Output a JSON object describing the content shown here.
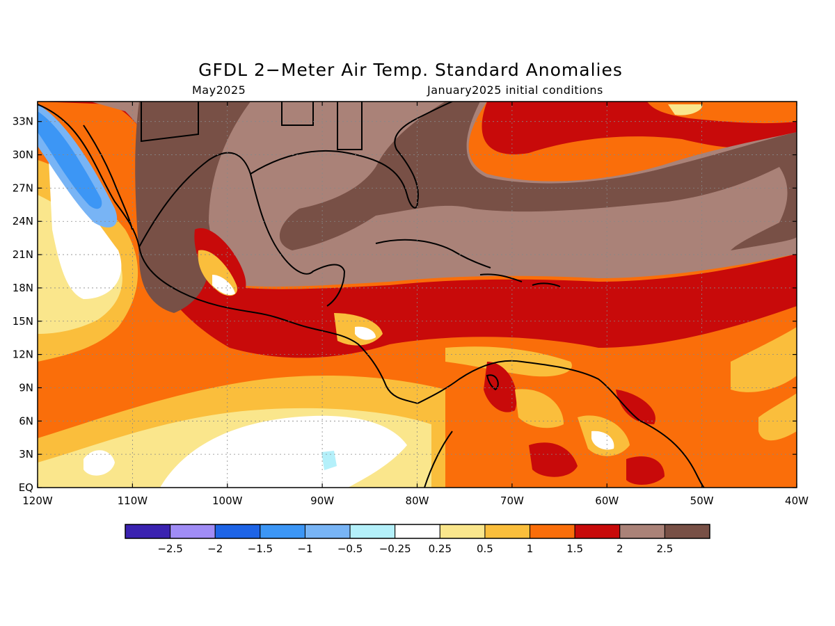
{
  "title": "GFDL 2−Meter Air Temp. Standard Anomalies",
  "subtitle_left": "May2025",
  "subtitle_right": "January2025 initial conditions",
  "lat_ticks": [
    "EQ",
    "3N",
    "6N",
    "9N",
    "12N",
    "15N",
    "18N",
    "21N",
    "24N",
    "27N",
    "30N",
    "33N"
  ],
  "lon_ticks": [
    "120W",
    "110W",
    "100W",
    "90W",
    "80W",
    "70W",
    "60W",
    "50W",
    "40W"
  ],
  "colorbar": {
    "colors": [
      "#3a22b0",
      "#a08cf5",
      "#1e64e6",
      "#3c96f5",
      "#78b4f5",
      "#b4f0fa",
      "#ffffff",
      "#fae68c",
      "#fabe3c",
      "#fa6e0a",
      "#c80a0a",
      "#aa8278",
      "#785046"
    ],
    "labels": [
      "−2.5",
      "−2",
      "−1.5",
      "−1",
      "−0.5",
      "−0.25",
      "0.25",
      "0.5",
      "1",
      "1.5",
      "2",
      "2.5"
    ]
  }
}
